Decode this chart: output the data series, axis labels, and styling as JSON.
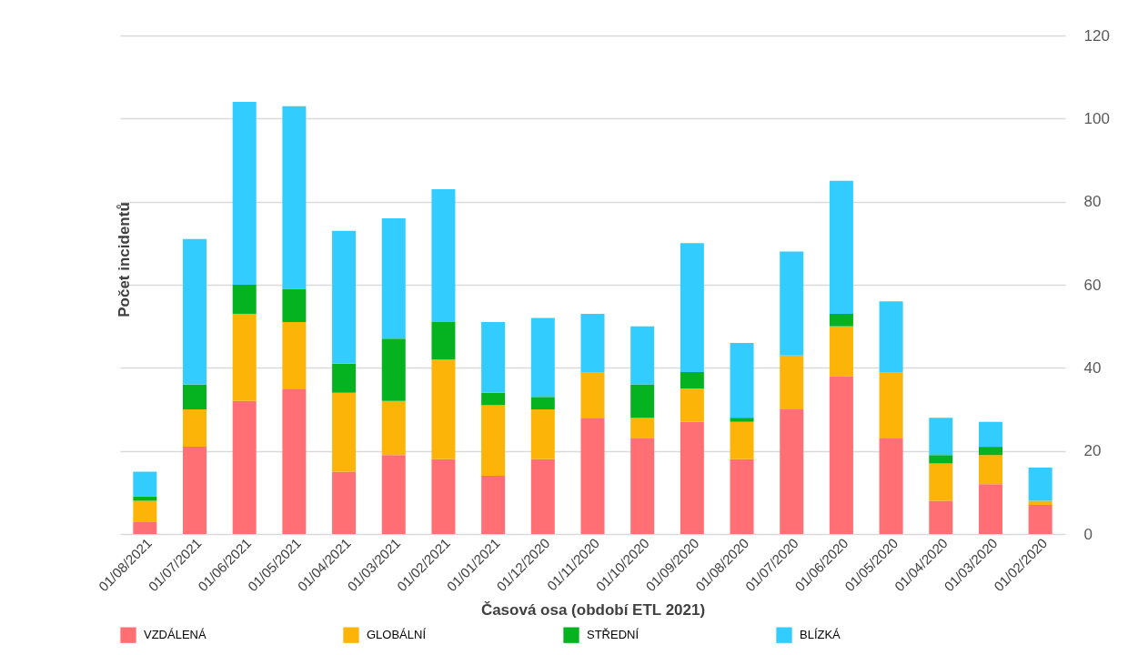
{
  "chart_data": {
    "type": "bar",
    "stacked": true,
    "xlabel": "Časová osa (období ETL 2021)",
    "ylabel": "Počet incidentů",
    "categories": [
      "01/08/2021",
      "01/07/2021",
      "01/06/2021",
      "01/05/2021",
      "01/04/2021",
      "01/03/2021",
      "01/02/2021",
      "01/01/2021",
      "01/12/2020",
      "01/11/2020",
      "01/10/2020",
      "01/09/2020",
      "01/08/2020",
      "01/07/2020",
      "01/06/2020",
      "01/05/2020",
      "01/04/2020",
      "01/03/2020",
      "01/02/2020"
    ],
    "series": [
      {
        "name": "VZDÁLENÁ",
        "color": "#ff6f73",
        "values": [
          3,
          21,
          32,
          35,
          15,
          19,
          18,
          14,
          18,
          28,
          23,
          27,
          18,
          30,
          38,
          23,
          8,
          12,
          7
        ]
      },
      {
        "name": "GLOBÁLNÍ",
        "color": "#fbb407",
        "values": [
          5,
          9,
          21,
          16,
          19,
          13,
          24,
          17,
          12,
          11,
          5,
          8,
          9,
          13,
          12,
          16,
          9,
          7,
          1
        ]
      },
      {
        "name": "STŘEDNÍ",
        "color": "#05b320",
        "values": [
          1,
          6,
          7,
          8,
          7,
          15,
          9,
          3,
          3,
          0,
          8,
          4,
          1,
          0,
          3,
          0,
          2,
          2,
          0
        ]
      },
      {
        "name": "BLÍZKÁ",
        "color": "#33ccff",
        "values": [
          6,
          35,
          44,
          44,
          32,
          29,
          32,
          17,
          19,
          14,
          14,
          31,
          18,
          25,
          32,
          17,
          9,
          6,
          8
        ]
      }
    ],
    "ylim": [
      0,
      120
    ],
    "yticks": [
      0,
      20,
      40,
      60,
      80,
      100,
      120
    ],
    "grid": "y",
    "legend": "bottom"
  }
}
